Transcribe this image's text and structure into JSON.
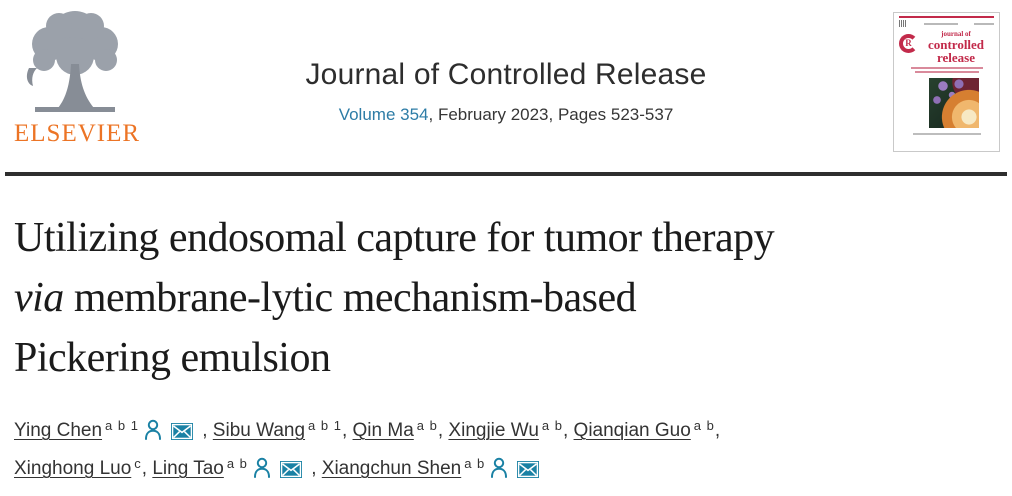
{
  "header": {
    "publisher": "ELSEVIER",
    "journal_title": "Journal of Controlled Release",
    "volume_link": "Volume 354",
    "issue_info": ", February 2023, Pages 523-537"
  },
  "cover": {
    "badge_letter": "R",
    "logo_small": "journal of",
    "logo_line2": "controlled",
    "logo_line3": "release"
  },
  "article": {
    "title_line1": "Utilizing endosomal capture for tumor therapy",
    "title_via": "via",
    "title_line2_rest": " membrane-lytic mechanism-based",
    "title_line3": "Pickering emulsion"
  },
  "authors": [
    {
      "name": "Ying Chen",
      "sup": "a b 1",
      "person": true,
      "mail": true,
      "sep": " , "
    },
    {
      "name": "Sibu Wang",
      "sup": "a b 1",
      "person": false,
      "mail": false,
      "sep": ", "
    },
    {
      "name": "Qin Ma",
      "sup": "a b",
      "person": false,
      "mail": false,
      "sep": ", "
    },
    {
      "name": "Xingjie Wu",
      "sup": "a b",
      "person": false,
      "mail": false,
      "sep": ", "
    },
    {
      "name": "Qianqian Guo",
      "sup": "a b",
      "person": false,
      "mail": false,
      "sep": ",",
      "break_after": true
    },
    {
      "name": "Xinghong Luo",
      "sup": "c",
      "person": false,
      "mail": false,
      "sep": ", "
    },
    {
      "name": "Ling Tao",
      "sup": "a b",
      "person": true,
      "mail": true,
      "sep": " , "
    },
    {
      "name": "Xiangchun Shen",
      "sup": "a b",
      "person": true,
      "mail": true,
      "sep": ""
    }
  ],
  "colors": {
    "accent_teal": "#1a81a4",
    "link_blue": "#2d7ca6",
    "elsevier_orange": "#ec7425",
    "cover_red": "#c22a4a",
    "rule_dark": "#2e2e2e"
  }
}
